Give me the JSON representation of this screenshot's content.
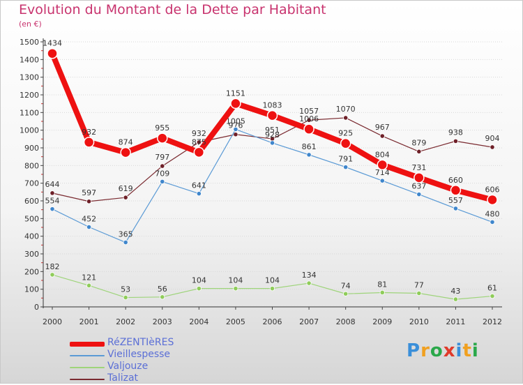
{
  "title": "Evolution du Montant de la Dette par Habitant",
  "subtitle": "(en €)",
  "logo": {
    "text": "Proxiti",
    "colors": [
      "#3a8fd9",
      "#f0a020",
      "#2aa84a",
      "#e03a2a",
      "#3a8fd9",
      "#f0a020",
      "#2aa84a"
    ]
  },
  "chart_data": {
    "type": "line",
    "x": [
      "2000",
      "2001",
      "2002",
      "2003",
      "2004",
      "2005",
      "2006",
      "2007",
      "2008",
      "2009",
      "2010",
      "2011",
      "2012"
    ],
    "ylim": [
      0,
      1500
    ],
    "yticks": [
      0,
      100,
      200,
      300,
      400,
      500,
      600,
      700,
      800,
      900,
      1000,
      1100,
      1200,
      1300,
      1400,
      1500
    ],
    "grid": "horizontal",
    "legend_position": "bottom-left",
    "series": [
      {
        "name": "Talizat",
        "color": "#7a2a30",
        "values": [
          644,
          597,
          619,
          797,
          932,
          976,
          951,
          1057,
          1070,
          967,
          879,
          938,
          904
        ]
      },
      {
        "name": "Vieillespesse",
        "color": "#5a9ad5",
        "values": [
          554,
          452,
          365,
          709,
          641,
          1005,
          928,
          861,
          791,
          714,
          637,
          557,
          480
        ]
      },
      {
        "name": "Valjouze",
        "color": "#9ed47a",
        "values": [
          182,
          121,
          53,
          56,
          104,
          104,
          104,
          134,
          74,
          81,
          77,
          43,
          61
        ]
      },
      {
        "name": "RéZENTIèRES",
        "color": "#ee1111",
        "values": [
          1434,
          932,
          874,
          955,
          875,
          1151,
          1083,
          1006,
          925,
          804,
          731,
          660,
          606
        ]
      }
    ],
    "legend_order": [
      "RéZENTIèRES",
      "Vieillespesse",
      "Valjouze",
      "Talizat"
    ]
  }
}
